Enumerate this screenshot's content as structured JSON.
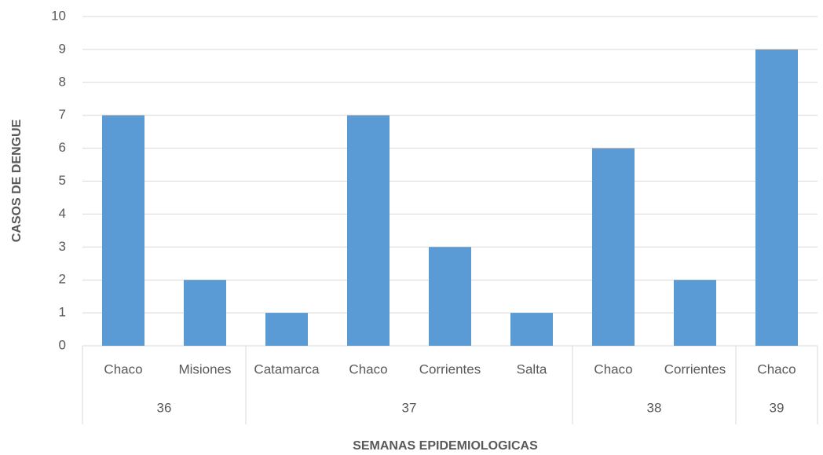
{
  "chart_data": {
    "type": "bar",
    "x_label": "SEMANAS EPIDEMIOLOGICAS",
    "y_label": "CASOS DE DENGUE",
    "color": "#5b9bd5",
    "groups": [
      {
        "label": "36",
        "categories": [
          "Chaco",
          "Misiones"
        ],
        "values": [
          7,
          2
        ]
      },
      {
        "label": "37",
        "categories": [
          "Catamarca",
          "Chaco",
          "Corrientes",
          "Salta"
        ],
        "values": [
          1,
          7,
          3,
          1
        ]
      },
      {
        "label": "38",
        "categories": [
          "Chaco",
          "Corrientes"
        ],
        "values": [
          6,
          2
        ]
      },
      {
        "label": "39",
        "categories": [
          "Chaco"
        ],
        "values": [
          9
        ]
      }
    ],
    "ylim": [
      0,
      10
    ],
    "yticks": [
      0,
      1,
      2,
      3,
      4,
      5,
      6,
      7,
      8,
      9,
      10
    ],
    "grid": true
  }
}
